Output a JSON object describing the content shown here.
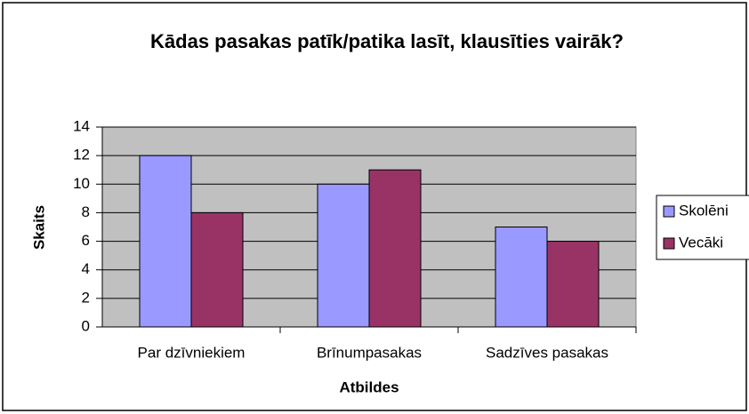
{
  "chart_data": {
    "type": "bar",
    "title": "Kādas pasakas patīk/patika lasīt, klausīties vairāk?",
    "xlabel": "Atbildes",
    "ylabel": "Skaits",
    "categories": [
      "Par dzīvniekiem",
      "Brīnumpasakas",
      "Sadzīves pasakas"
    ],
    "series": [
      {
        "name": "Skolēni",
        "color": "#9999ff",
        "values": [
          12,
          10,
          7
        ]
      },
      {
        "name": "Vecāki",
        "color": "#993366",
        "values": [
          8,
          11,
          6
        ]
      }
    ],
    "ylim": [
      0,
      14
    ],
    "yticks": [
      0,
      2,
      4,
      6,
      8,
      10,
      12,
      14
    ],
    "grid": true,
    "legend": "right"
  }
}
